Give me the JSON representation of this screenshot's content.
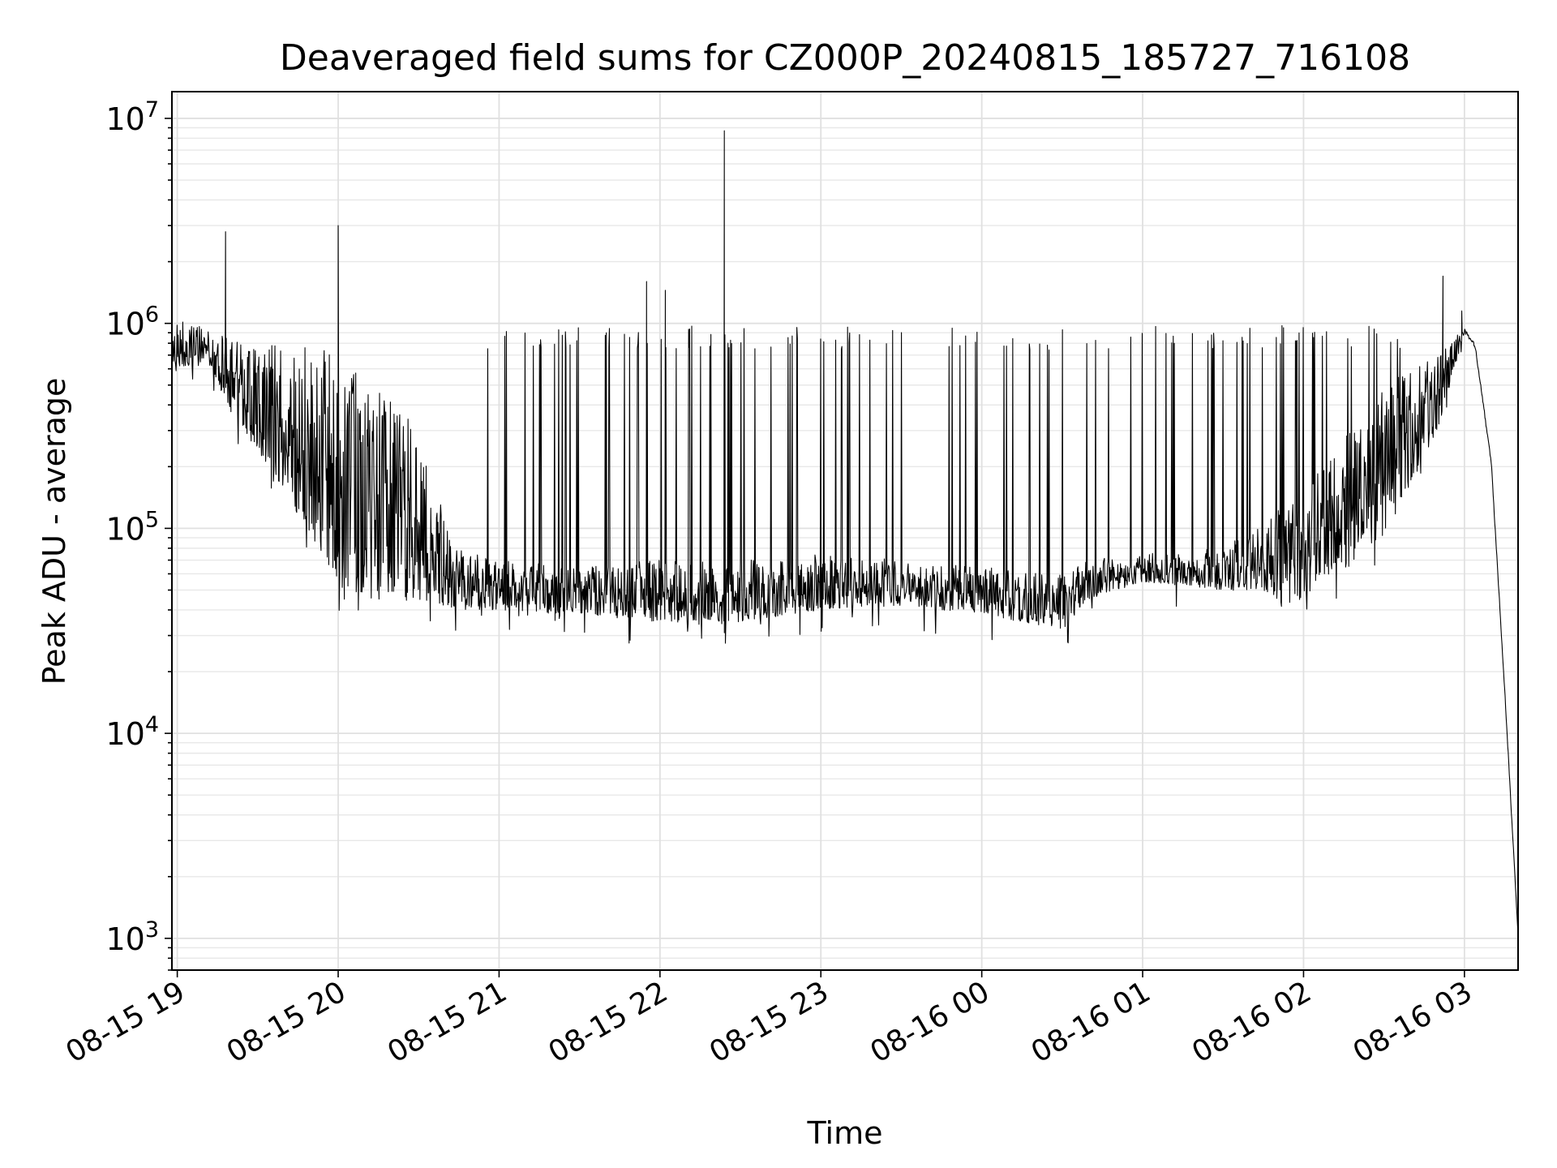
{
  "chart_data": {
    "type": "line",
    "title": "Deaveraged field sums for CZ000P_20240815_185727_716108",
    "xlabel": "Time",
    "ylabel": "Peak ADU - average",
    "yscale": "log",
    "grid": true,
    "xlim": [
      "2024-08-15 18:58",
      "2024-08-16 03:20"
    ],
    "ylim": [
      700,
      13500000
    ],
    "x_ticks": [
      {
        "t": "2024-08-15 19:00",
        "label": "08-15 19"
      },
      {
        "t": "2024-08-15 20:00",
        "label": "08-15 20"
      },
      {
        "t": "2024-08-15 21:00",
        "label": "08-15 21"
      },
      {
        "t": "2024-08-15 22:00",
        "label": "08-15 22"
      },
      {
        "t": "2024-08-15 23:00",
        "label": "08-15 23"
      },
      {
        "t": "2024-08-16 00:00",
        "label": "08-16 00"
      },
      {
        "t": "2024-08-16 01:00",
        "label": "08-16 01"
      },
      {
        "t": "2024-08-16 02:00",
        "label": "08-16 02"
      },
      {
        "t": "2024-08-16 03:00",
        "label": "08-16 03"
      }
    ],
    "y_ticks": [
      {
        "v": 1000,
        "base": "10",
        "exp": "3"
      },
      {
        "v": 10000,
        "base": "10",
        "exp": "4"
      },
      {
        "v": 100000,
        "base": "10",
        "exp": "5"
      },
      {
        "v": 1000000,
        "base": "10",
        "exp": "6"
      },
      {
        "v": 10000000,
        "base": "10",
        "exp": "7"
      }
    ],
    "series": [
      {
        "color": "#000000",
        "envelope": [
          {
            "t": "2024-08-15 18:58",
            "low": 620000,
            "high": 1050000
          },
          {
            "t": "2024-08-15 19:10",
            "low": 620000,
            "high": 980000
          },
          {
            "t": "2024-08-15 19:15",
            "low": 500000,
            "high": 900000
          },
          {
            "t": "2024-08-15 19:25",
            "low": 300000,
            "high": 800000
          },
          {
            "t": "2024-08-15 19:40",
            "low": 150000,
            "high": 800000
          },
          {
            "t": "2024-08-15 19:50",
            "low": 90000,
            "high": 850000
          },
          {
            "t": "2024-08-15 20:00",
            "low": 50000,
            "high": 800000
          },
          {
            "t": "2024-08-15 20:30",
            "low": 45000,
            "high": 300000
          },
          {
            "t": "2024-08-15 20:45",
            "low": 40000,
            "high": 80000
          },
          {
            "t": "2024-08-15 21:00",
            "low": 40000,
            "high": 70000
          },
          {
            "t": "2024-08-15 21:30",
            "low": 38000,
            "high": 65000
          },
          {
            "t": "2024-08-15 22:00",
            "low": 35000,
            "high": 70000
          },
          {
            "t": "2024-08-15 22:30",
            "low": 35000,
            "high": 70000
          },
          {
            "t": "2024-08-15 23:00",
            "low": 40000,
            "high": 75000
          },
          {
            "t": "2024-08-15 23:30",
            "low": 42000,
            "high": 70000
          },
          {
            "t": "2024-08-16 00:00",
            "low": 38000,
            "high": 65000
          },
          {
            "t": "2024-08-16 00:30",
            "low": 32000,
            "high": 60000
          },
          {
            "t": "2024-08-16 00:40",
            "low": 45000,
            "high": 70000
          },
          {
            "t": "2024-08-16 01:00",
            "low": 55000,
            "high": 75000
          },
          {
            "t": "2024-08-16 01:30",
            "low": 50000,
            "high": 80000
          },
          {
            "t": "2024-08-16 02:00",
            "low": 45000,
            "high": 150000
          },
          {
            "t": "2024-08-16 02:30",
            "low": 90000,
            "high": 500000
          },
          {
            "t": "2024-08-16 02:50",
            "low": 300000,
            "high": 700000
          },
          {
            "t": "2024-08-16 03:00",
            "low": 900000,
            "high": 950000
          },
          {
            "t": "2024-08-16 03:04",
            "low": 750000,
            "high": 800000
          },
          {
            "t": "2024-08-16 03:10",
            "low": 200000,
            "high": 220000
          },
          {
            "t": "2024-08-16 03:15",
            "low": 15000,
            "high": 18000
          },
          {
            "t": "2024-08-16 03:20",
            "low": 1000,
            "high": 1100
          }
        ],
        "burst_level_t": [
          "2024-08-15 20:55",
          "2024-08-16 02:40"
        ],
        "burst_level": 850000,
        "spikes": [
          {
            "t": "2024-08-15 19:18",
            "v": 2800000
          },
          {
            "t": "2024-08-15 20:00",
            "v": 3000000
          },
          {
            "t": "2024-08-15 21:55",
            "v": 1600000
          },
          {
            "t": "2024-08-15 22:02",
            "v": 1450000
          },
          {
            "t": "2024-08-15 22:24",
            "v": 8700000
          },
          {
            "t": "2024-08-16 02:52",
            "v": 1700000
          },
          {
            "t": "2024-08-16 02:59",
            "v": 1150000
          }
        ]
      }
    ]
  }
}
